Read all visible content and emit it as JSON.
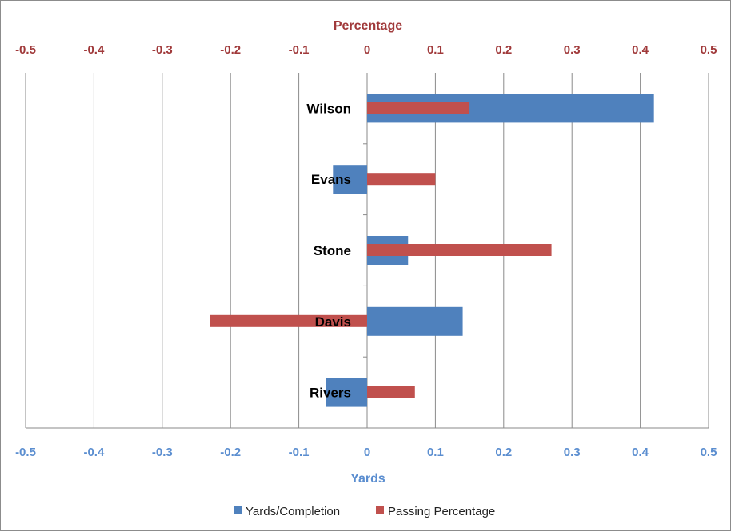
{
  "chart_data": {
    "type": "bar",
    "orientation": "horizontal",
    "categories": [
      "Wilson",
      "Evans",
      "Stone",
      "Davis",
      "Rivers"
    ],
    "series": [
      {
        "name": "Yards/Completion",
        "axis": "bottom",
        "color": "#4f81bd",
        "values": [
          0.42,
          -0.05,
          0.06,
          0.14,
          -0.06
        ]
      },
      {
        "name": "Passing Percentage",
        "axis": "top",
        "color": "#c0504d",
        "values": [
          0.15,
          0.1,
          0.27,
          -0.23,
          0.07
        ]
      }
    ],
    "xlabel_top": "Percentage",
    "xlabel_bottom": "Yards",
    "xlim": [
      -0.5,
      0.5
    ],
    "ticks": [
      "-0.5",
      "-0.4",
      "-0.3",
      "-0.2",
      "-0.1",
      "0",
      "0.1",
      "0.2",
      "0.3",
      "0.4",
      "0.5"
    ],
    "tick_values": [
      -0.5,
      -0.4,
      -0.3,
      -0.2,
      -0.1,
      0,
      0.1,
      0.2,
      0.3,
      0.4,
      0.5
    ],
    "grid": true,
    "legend_position": "bottom"
  }
}
